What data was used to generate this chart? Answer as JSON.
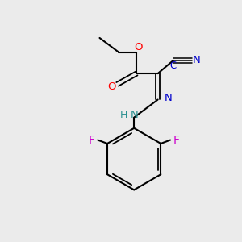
{
  "background_color": "#ebebeb",
  "bond_color": "#000000",
  "colors": {
    "O": "#ff0000",
    "N_blue": "#0000cc",
    "N_teal": "#2a9090",
    "F": "#cc00cc",
    "default": "#000000"
  },
  "figsize": [
    3.0,
    3.0
  ],
  "dpi": 100,
  "xlim": [
    0,
    10
  ],
  "ylim": [
    0,
    10
  ]
}
